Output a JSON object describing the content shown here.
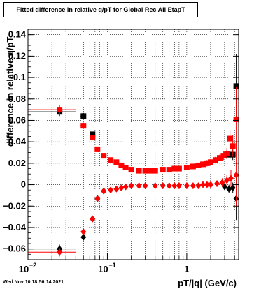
{
  "title": "Fitted difference in relative q/pT for Global Rec All EtapT",
  "timestamp": "Wed Nov 10 18:56:14 2021",
  "colors": {
    "series_black": "#000000",
    "series_red": "#ff0000",
    "frame": "#000000"
  },
  "chart_data": {
    "type": "scatter",
    "title": "Fitted difference in relative q/pT for Global Rec All EtapT",
    "xlabel": "pT/|q| (GeV/c)",
    "ylabel": "difference in relative q/pT",
    "xscale": "log",
    "xlim": [
      0.01,
      4.5
    ],
    "ylim": [
      -0.07,
      0.145
    ],
    "grid": true,
    "x_tick_labels": [
      "10",
      "10",
      "1"
    ],
    "x_tick_exponents": [
      "−2",
      "−1",
      ""
    ],
    "y_ticks": [
      -0.06,
      -0.04,
      -0.02,
      0,
      0.02,
      0.04,
      0.06,
      0.08,
      0.1,
      0.12,
      0.14
    ],
    "y_tick_labels": [
      "−0.06",
      "−0.04",
      "−0.02",
      "0",
      "0.02",
      "0.04",
      "0.06",
      "0.08",
      "0.1",
      "0.12",
      "0.14"
    ],
    "series": [
      {
        "color": "#000000",
        "marker": "square",
        "points": [
          [
            0.025,
            0.068
          ],
          [
            0.05,
            0.064
          ],
          [
            0.065,
            0.047
          ],
          [
            3.2,
            0.028
          ],
          [
            3.5,
            0.028
          ],
          [
            3.8,
            0.028
          ],
          [
            4.2,
            0.092
          ]
        ],
        "x_err": [
          0.015,
          0.004,
          0.003,
          0.1,
          0.1,
          0.1,
          0.2
        ],
        "y_err": [
          0.004,
          0.003,
          0.002,
          0.004,
          0.004,
          0.005,
          0.03
        ]
      },
      {
        "color": "#ff0000",
        "marker": "square",
        "points": [
          [
            0.025,
            0.07
          ],
          [
            0.05,
            0.055
          ],
          [
            0.065,
            0.044
          ],
          [
            0.075,
            0.033
          ],
          [
            0.09,
            0.027
          ],
          [
            0.11,
            0.023
          ],
          [
            0.13,
            0.021
          ],
          [
            0.15,
            0.018
          ],
          [
            0.17,
            0.016
          ],
          [
            0.2,
            0.014
          ],
          [
            0.25,
            0.013
          ],
          [
            0.3,
            0.013
          ],
          [
            0.35,
            0.013
          ],
          [
            0.4,
            0.013
          ],
          [
            0.5,
            0.014
          ],
          [
            0.6,
            0.014
          ],
          [
            0.7,
            0.015
          ],
          [
            0.8,
            0.015
          ],
          [
            1.0,
            0.016
          ],
          [
            1.2,
            0.017
          ],
          [
            1.4,
            0.018
          ],
          [
            1.6,
            0.019
          ],
          [
            1.8,
            0.02
          ],
          [
            2.0,
            0.021
          ],
          [
            2.3,
            0.023
          ],
          [
            2.6,
            0.025
          ],
          [
            2.9,
            0.027
          ],
          [
            3.2,
            0.029
          ],
          [
            3.5,
            0.043
          ],
          [
            3.8,
            0.036
          ],
          [
            4.2,
            0.061
          ]
        ],
        "x_err": [
          0.015,
          0.004,
          0.003,
          0.003,
          0.004,
          0.005,
          0.005,
          0.006,
          0.006,
          0.01,
          0.01,
          0.01,
          0.01,
          0.02,
          0.02,
          0.02,
          0.02,
          0.03,
          0.04,
          0.05,
          0.05,
          0.06,
          0.06,
          0.07,
          0.08,
          0.08,
          0.09,
          0.1,
          0.1,
          0.1,
          0.2
        ],
        "y_err": [
          0.004,
          0.003,
          0.002,
          0.002,
          0.002,
          0.002,
          0.002,
          0.002,
          0.002,
          0.002,
          0.002,
          0.002,
          0.002,
          0.002,
          0.002,
          0.002,
          0.002,
          0.002,
          0.002,
          0.002,
          0.002,
          0.002,
          0.003,
          0.003,
          0.003,
          0.003,
          0.004,
          0.005,
          0.008,
          0.01,
          0.03
        ]
      },
      {
        "color": "#000000",
        "marker": "diamond",
        "points": [
          [
            0.025,
            -0.06
          ],
          [
            0.05,
            -0.049
          ],
          [
            0.065,
            -0.032
          ],
          [
            0.075,
            -0.013
          ],
          [
            0.09,
            -0.006
          ],
          [
            3.0,
            -0.002
          ],
          [
            3.4,
            -0.004
          ],
          [
            3.8,
            -0.003
          ],
          [
            4.2,
            -0.013
          ]
        ],
        "x_err": [
          0.015,
          0.004,
          0.003,
          0.003,
          0.004,
          0.1,
          0.1,
          0.1,
          0.2
        ],
        "y_err": [
          0.004,
          0.003,
          0.002,
          0.002,
          0.002,
          0.003,
          0.004,
          0.005,
          0.02
        ]
      },
      {
        "color": "#ff0000",
        "marker": "diamond",
        "points": [
          [
            0.025,
            -0.063
          ],
          [
            0.05,
            -0.044
          ],
          [
            0.065,
            -0.032
          ],
          [
            0.075,
            -0.013
          ],
          [
            0.09,
            -0.006
          ],
          [
            0.11,
            -0.005
          ],
          [
            0.13,
            -0.004
          ],
          [
            0.15,
            -0.003
          ],
          [
            0.17,
            -0.002
          ],
          [
            0.2,
            -0.001
          ],
          [
            0.25,
            -0.001
          ],
          [
            0.3,
            -0.001
          ],
          [
            0.4,
            -0.001
          ],
          [
            0.5,
            -0.001
          ],
          [
            0.6,
            -0.001
          ],
          [
            0.7,
            -0.001
          ],
          [
            0.8,
            -0.001
          ],
          [
            1.0,
            -0.001
          ],
          [
            1.2,
            -0.001
          ],
          [
            1.4,
            -0.001
          ],
          [
            1.6,
            0.0
          ],
          [
            1.8,
            0.0
          ],
          [
            2.0,
            0.0
          ],
          [
            2.4,
            0.001
          ],
          [
            2.8,
            0.002
          ],
          [
            3.2,
            0.004
          ],
          [
            3.6,
            0.006
          ],
          [
            4.2,
            0.009
          ]
        ],
        "x_err": [
          0.015,
          0.004,
          0.003,
          0.003,
          0.004,
          0.005,
          0.005,
          0.006,
          0.006,
          0.01,
          0.01,
          0.01,
          0.02,
          0.02,
          0.02,
          0.02,
          0.03,
          0.04,
          0.05,
          0.05,
          0.06,
          0.06,
          0.07,
          0.08,
          0.08,
          0.1,
          0.1,
          0.2
        ],
        "y_err": [
          0.004,
          0.003,
          0.002,
          0.002,
          0.002,
          0.002,
          0.002,
          0.002,
          0.002,
          0.002,
          0.002,
          0.002,
          0.002,
          0.002,
          0.002,
          0.002,
          0.002,
          0.002,
          0.002,
          0.002,
          0.002,
          0.002,
          0.003,
          0.003,
          0.004,
          0.005,
          0.008,
          0.03
        ]
      }
    ]
  }
}
